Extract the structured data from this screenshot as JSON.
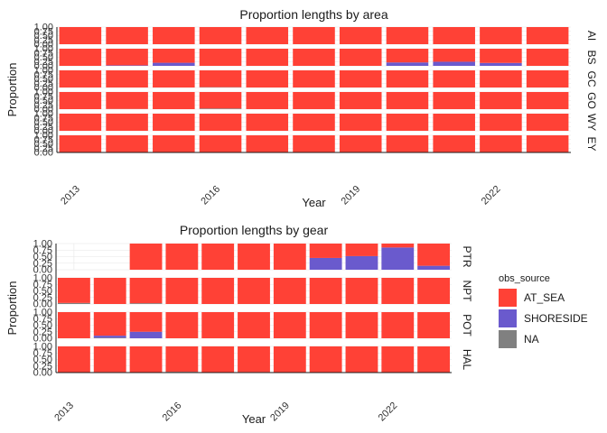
{
  "colors": {
    "AT_SEA": "#FF4136",
    "SHORESIDE": "#6A5ACD",
    "NA": "#808080",
    "grid": "#e6e6e6"
  },
  "legend": {
    "title": "obs_source",
    "items": [
      {
        "key": "AT_SEA",
        "label": "AT_SEA"
      },
      {
        "key": "SHORESIDE",
        "label": "SHORESIDE"
      },
      {
        "key": "NA",
        "label": "NA"
      }
    ]
  },
  "chart_data": [
    {
      "type": "bar",
      "stacked": true,
      "facet": "rows",
      "title": "Proportion lengths by area",
      "xlabel": "Year",
      "ylabel": "Proportion",
      "x": [
        2013,
        2014,
        2015,
        2016,
        2017,
        2018,
        2019,
        2020,
        2021,
        2022,
        2023
      ],
      "xticks": [
        2013,
        2016,
        2019,
        2022
      ],
      "yticks": [
        "0.00",
        "0.25",
        "0.50",
        "0.75",
        "1.00"
      ],
      "ylim": [
        0,
        1
      ],
      "panels": [
        {
          "label": "AI",
          "series": {
            "AT_SEA": [
              1,
              1,
              1,
              1,
              1,
              1,
              1,
              1,
              1,
              1,
              1
            ],
            "SHORESIDE": [
              0,
              0,
              0,
              0,
              0,
              0,
              0,
              0,
              0,
              0,
              0
            ],
            "NA": [
              0,
              0,
              0,
              0,
              0,
              0,
              0,
              0,
              0,
              0,
              0
            ]
          }
        },
        {
          "label": "BS",
          "series": {
            "AT_SEA": [
              1,
              0.97,
              0.82,
              1,
              1,
              1,
              1,
              0.8,
              0.76,
              0.83,
              1
            ],
            "SHORESIDE": [
              0,
              0.03,
              0.18,
              0,
              0,
              0,
              0,
              0.2,
              0.24,
              0.17,
              0
            ],
            "NA": [
              0,
              0,
              0,
              0,
              0,
              0,
              0,
              0,
              0,
              0,
              0
            ]
          }
        },
        {
          "label": "GC",
          "series": {
            "AT_SEA": [
              1,
              1,
              1,
              0.98,
              1,
              1,
              1,
              1,
              1,
              1,
              1
            ],
            "SHORESIDE": [
              0,
              0,
              0,
              0,
              0,
              0,
              0,
              0,
              0,
              0,
              0
            ],
            "NA": [
              0,
              0,
              0,
              0.02,
              0,
              0,
              0,
              0,
              0,
              0,
              0
            ]
          }
        },
        {
          "label": "GO",
          "series": {
            "AT_SEA": [
              1,
              0.99,
              1,
              0.96,
              1,
              1,
              1,
              1,
              1,
              1,
              1
            ],
            "SHORESIDE": [
              0,
              0,
              0,
              0,
              0,
              0,
              0,
              0,
              0,
              0,
              0
            ],
            "NA": [
              0,
              0.01,
              0,
              0.04,
              0,
              0,
              0,
              0,
              0,
              0,
              0
            ]
          }
        },
        {
          "label": "WY",
          "series": {
            "AT_SEA": [
              1,
              1,
              1,
              1,
              1,
              1,
              1,
              1,
              1,
              1,
              1
            ],
            "SHORESIDE": [
              0,
              0,
              0,
              0,
              0,
              0,
              0,
              0,
              0,
              0,
              0
            ],
            "NA": [
              0,
              0,
              0,
              0,
              0,
              0,
              0,
              0,
              0,
              0,
              0
            ]
          }
        },
        {
          "label": "EY",
          "series": {
            "AT_SEA": [
              1,
              1,
              1,
              1,
              1,
              1,
              1,
              1,
              1,
              1,
              1
            ],
            "SHORESIDE": [
              0,
              0,
              0,
              0,
              0,
              0,
              0,
              0,
              0,
              0,
              0
            ],
            "NA": [
              0,
              0,
              0,
              0,
              0,
              0,
              0,
              0,
              0,
              0,
              0
            ]
          }
        }
      ]
    },
    {
      "type": "bar",
      "stacked": true,
      "facet": "rows",
      "title": "Proportion lengths by gear",
      "xlabel": "Year",
      "ylabel": "Proportion",
      "x": [
        2013,
        2014,
        2015,
        2016,
        2017,
        2018,
        2019,
        2020,
        2021,
        2022,
        2023
      ],
      "xticks": [
        2013,
        2016,
        2019,
        2022
      ],
      "yticks": [
        "0.00",
        "0.25",
        "0.50",
        "0.75",
        "1.00"
      ],
      "ylim": [
        0,
        1
      ],
      "panels": [
        {
          "label": "PTR",
          "series": {
            "AT_SEA": [
              0,
              0,
              1,
              1,
              1,
              1,
              1,
              0.55,
              0.48,
              0.15,
              0.85
            ],
            "SHORESIDE": [
              0,
              0,
              0,
              0,
              0,
              0,
              0,
              0.45,
              0.52,
              0.85,
              0.15
            ],
            "NA": [
              0,
              0,
              0,
              0,
              0,
              0,
              0,
              0,
              0,
              0,
              0
            ]
          }
        },
        {
          "label": "NPT",
          "series": {
            "AT_SEA": [
              0.96,
              1,
              0.97,
              1,
              1,
              1,
              1,
              1,
              1,
              1,
              1
            ],
            "SHORESIDE": [
              0,
              0,
              0,
              0,
              0,
              0,
              0,
              0,
              0,
              0,
              0
            ],
            "NA": [
              0.04,
              0,
              0.03,
              0,
              0,
              0,
              0,
              0,
              0,
              0,
              0
            ]
          }
        },
        {
          "label": "POT",
          "series": {
            "AT_SEA": [
              1,
              0.9,
              0.75,
              1,
              1,
              1,
              1,
              1,
              1,
              1,
              1
            ],
            "SHORESIDE": [
              0,
              0.08,
              0.25,
              0,
              0,
              0,
              0,
              0,
              0,
              0,
              0
            ],
            "NA": [
              0,
              0.02,
              0,
              0,
              0,
              0,
              0,
              0,
              0,
              0,
              0
            ]
          }
        },
        {
          "label": "HAL",
          "series": {
            "AT_SEA": [
              1,
              0.98,
              1,
              0.97,
              1,
              0.98,
              1,
              1,
              1,
              1,
              1
            ],
            "SHORESIDE": [
              0,
              0,
              0,
              0,
              0,
              0,
              0,
              0,
              0,
              0,
              0
            ],
            "NA": [
              0,
              0.02,
              0,
              0.03,
              0,
              0.02,
              0,
              0,
              0,
              0,
              0
            ]
          }
        }
      ]
    }
  ]
}
